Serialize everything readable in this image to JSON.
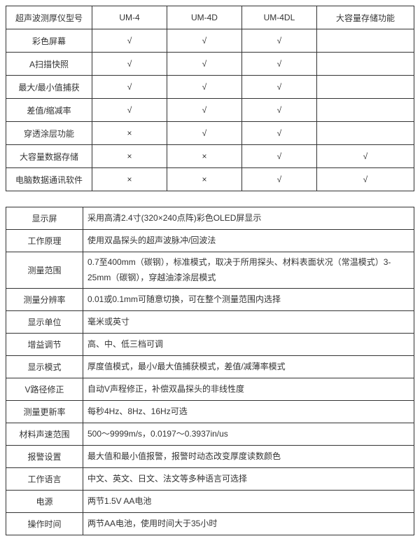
{
  "colors": {
    "border": "#888888",
    "text": "#333333"
  },
  "comparison": {
    "headers": [
      "超声波测厚仪型号",
      "UM-4",
      "UM-4D",
      "UM-4DL",
      "大容量存储功能"
    ],
    "rows": [
      {
        "label": "彩色屏幕",
        "cells": [
          "√",
          "√",
          "√",
          ""
        ]
      },
      {
        "label": "A扫描快照",
        "cells": [
          "√",
          "√",
          "√",
          ""
        ]
      },
      {
        "label": "最大/最小值捕获",
        "cells": [
          "√",
          "√",
          "√",
          ""
        ]
      },
      {
        "label": "差值/缩减率",
        "cells": [
          "√",
          "√",
          "√",
          ""
        ]
      },
      {
        "label": "穿透涂层功能",
        "cells": [
          "×",
          "√",
          "√",
          ""
        ]
      },
      {
        "label": "大容量数据存储",
        "cells": [
          "×",
          "×",
          "√",
          "√"
        ]
      },
      {
        "label": "电脑数据通讯软件",
        "cells": [
          "×",
          "×",
          "√",
          "√"
        ]
      }
    ]
  },
  "spec": {
    "rows": [
      {
        "label": "显示屏",
        "value": "采用高清2.4寸(320×240点阵)彩色OLED屏显示"
      },
      {
        "label": "工作原理",
        "value": "使用双晶探头的超声波脉冲/回波法"
      },
      {
        "label": "测量范围",
        "value": "0.7至400mm（碳钢），标准模式，取决于所用探头、材料表面状况（常温模式）3-25mm（碳钢），穿越油漆涂层模式"
      },
      {
        "label": "测量分辨率",
        "value": "0.01或0.1mm可随意切换，可在整个测量范围内选择"
      },
      {
        "label": "显示单位",
        "value": "毫米或英寸"
      },
      {
        "label": "增益调节",
        "value": "高、中、低三档可调"
      },
      {
        "label": "显示模式",
        "value": "厚度值模式，最小/最大值捕获模式，差值/减薄率模式"
      },
      {
        "label": "V路径修正",
        "value": "自动V声程修正，补偿双晶探头的非线性度"
      },
      {
        "label": "测量更新率",
        "value": "每秒4Hz、8Hz、16Hz可选"
      },
      {
        "label": "材料声速范围",
        "value": "500～9999m/s，0.0197～0.3937in/us"
      },
      {
        "label": "报警设置",
        "value": "最大值和最小值报警，报警时动态改变厚度读数颜色"
      },
      {
        "label": "工作语言",
        "value": "中文、英文、日文、法文等多种语言可选择"
      },
      {
        "label": "电源",
        "value": "两节1.5V  AA电池"
      },
      {
        "label": "操作时间",
        "value": "两节AA电池，使用时间大于35小时"
      }
    ]
  }
}
